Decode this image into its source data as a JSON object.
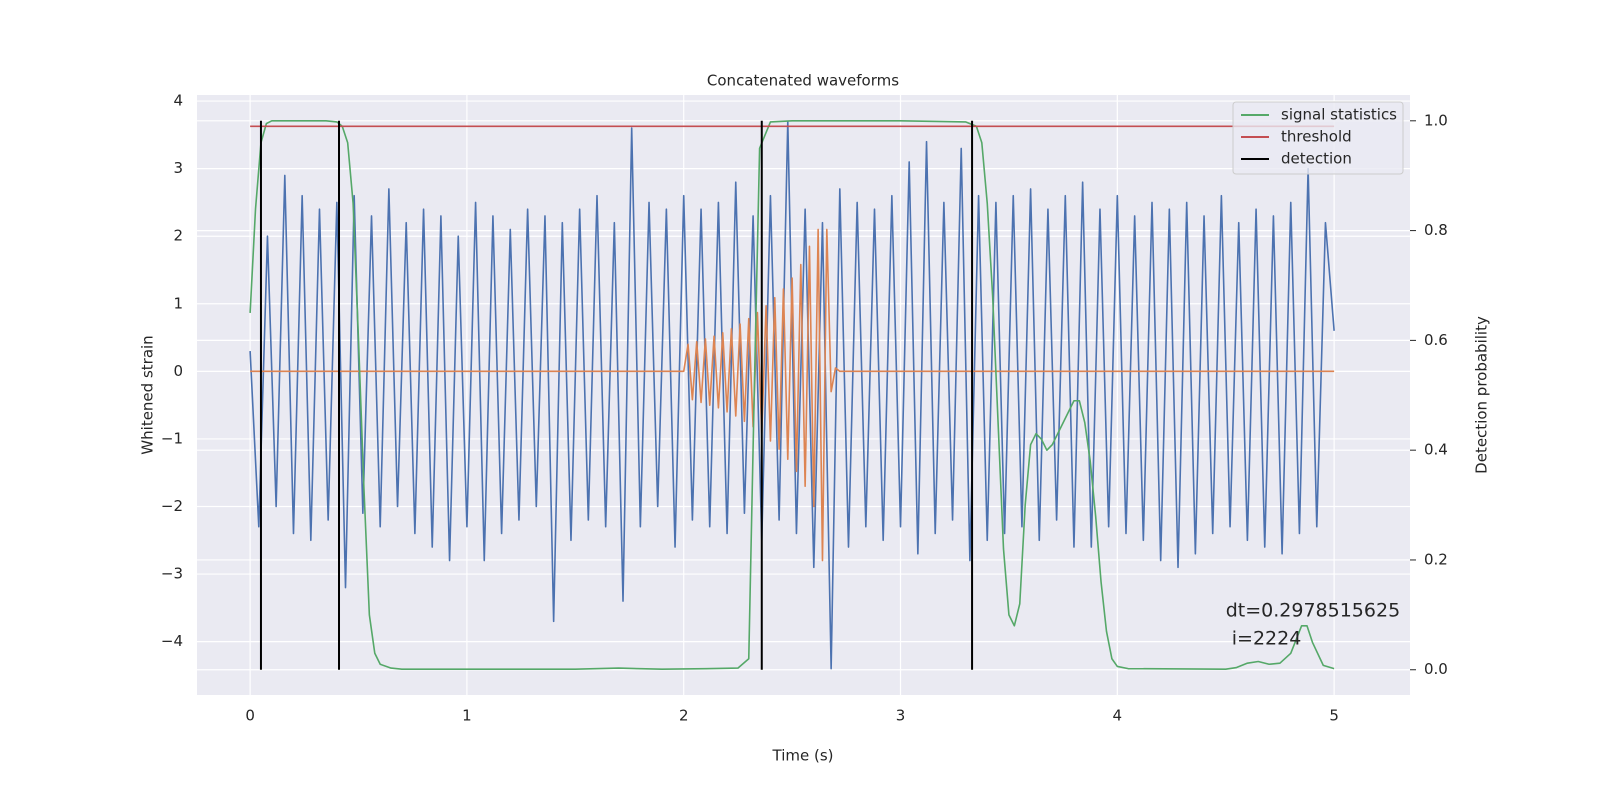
{
  "chart_data": {
    "type": "line",
    "title": "Concatenated waveforms",
    "x_label": "Time (s)",
    "y_label": "Whitened strain",
    "y2_label": "Detection probability",
    "xlim": [
      -0.245,
      5.35
    ],
    "ylim": [
      -4.79,
      4.09
    ],
    "y2lim": [
      -0.046,
      1.047
    ],
    "xticks": [
      0,
      1,
      2,
      3,
      4,
      5
    ],
    "yticks": [
      {
        "value": -4,
        "label": "−4"
      },
      {
        "value": -3,
        "label": "−3"
      },
      {
        "value": -2,
        "label": "−2"
      },
      {
        "value": -1,
        "label": "−1"
      },
      0,
      1,
      2,
      3,
      4
    ],
    "y2ticks": [
      {
        "value": 0,
        "label": "0.0"
      },
      0.2,
      0.4,
      0.6,
      0.8,
      {
        "value": 1,
        "label": "1.0"
      }
    ],
    "grid": true,
    "legend": "upper right",
    "annotation": [
      "dt=0.2978515625",
      " i=2224"
    ],
    "series": [
      {
        "kind": "line",
        "axis": "y",
        "color": "#4c72b0",
        "x": [
          0,
          0.04,
          0.08,
          0.12,
          0.16,
          0.2,
          0.24,
          0.28,
          0.32,
          0.36,
          0.4,
          0.44,
          0.48,
          0.52,
          0.56,
          0.6,
          0.64,
          0.68,
          0.72,
          0.76,
          0.8,
          0.84,
          0.88,
          0.92,
          0.96,
          1,
          1.04,
          1.08,
          1.12,
          1.16,
          1.2,
          1.24,
          1.28,
          1.32,
          1.36,
          1.4,
          1.44,
          1.48,
          1.52,
          1.56,
          1.6,
          1.64,
          1.68,
          1.72,
          1.76,
          1.8,
          1.84,
          1.88,
          1.92,
          1.96,
          2,
          2.04,
          2.08,
          2.12,
          2.16,
          2.2,
          2.24,
          2.28,
          2.32,
          2.36,
          2.4,
          2.44,
          2.48,
          2.52,
          2.56,
          2.6,
          2.64,
          2.68,
          2.72,
          2.76,
          2.8,
          2.84,
          2.88,
          2.92,
          2.96,
          3,
          3.04,
          3.08,
          3.12,
          3.16,
          3.2,
          3.24,
          3.28,
          3.32,
          3.36,
          3.4,
          3.44,
          3.48,
          3.52,
          3.56,
          3.6,
          3.64,
          3.68,
          3.72,
          3.76,
          3.8,
          3.84,
          3.88,
          3.92,
          3.96,
          4,
          4.04,
          4.08,
          4.12,
          4.16,
          4.2,
          4.24,
          4.28,
          4.32,
          4.36,
          4.4,
          4.44,
          4.48,
          4.52,
          4.56,
          4.6,
          4.64,
          4.68,
          4.72,
          4.76,
          4.8,
          4.84,
          4.88,
          4.92,
          4.96,
          5
        ],
        "values": [
          0.3,
          -2.3,
          2.0,
          -2.0,
          2.9,
          -2.4,
          2.6,
          -2.5,
          2.4,
          -2.2,
          2.5,
          -3.2,
          2.6,
          -2.1,
          2.3,
          -2.3,
          2.7,
          -2.0,
          2.2,
          -2.4,
          2.4,
          -2.6,
          2.3,
          -2.8,
          2.0,
          -2.3,
          2.5,
          -2.8,
          2.3,
          -2.4,
          2.1,
          -2.2,
          2.4,
          -2.0,
          2.3,
          -3.7,
          2.2,
          -2.5,
          2.4,
          -2.2,
          2.6,
          -2.3,
          2.2,
          -3.4,
          3.6,
          -2.3,
          2.5,
          -2.0,
          2.4,
          -2.6,
          2.6,
          -2.2,
          2.4,
          -2.3,
          2.5,
          -2.4,
          2.8,
          -2.1,
          2.3,
          -2.5,
          2.6,
          -2.2,
          3.7,
          -2.4,
          2.4,
          -2.9,
          2.2,
          -4.4,
          2.7,
          -2.6,
          2.5,
          -2.3,
          2.4,
          -2.5,
          2.6,
          -2.3,
          3.1,
          -2.7,
          3.4,
          -2.4,
          2.5,
          -2.2,
          3.3,
          -2.8,
          2.6,
          -2.5,
          2.5,
          -2.4,
          2.6,
          -2.3,
          2.7,
          -2.5,
          2.4,
          -2.2,
          2.6,
          -2.6,
          2.8,
          -2.6,
          2.4,
          -2.3,
          2.6,
          -2.4,
          2.3,
          -2.5,
          2.5,
          -2.8,
          2.4,
          -2.9,
          2.5,
          -2.7,
          2.3,
          -2.4,
          2.6,
          -2.3,
          2.2,
          -2.5,
          2.4,
          -2.6,
          2.3,
          -2.7,
          2.5,
          -2.4,
          3.0,
          -2.3,
          2.2,
          0.6
        ]
      },
      {
        "kind": "line",
        "axis": "y",
        "color": "#dd8452",
        "x": [
          0,
          2.0,
          2.02,
          2.04,
          2.06,
          2.08,
          2.1,
          2.12,
          2.14,
          2.16,
          2.18,
          2.2,
          2.22,
          2.24,
          2.26,
          2.28,
          2.3,
          2.32,
          2.34,
          2.36,
          2.38,
          2.4,
          2.42,
          2.44,
          2.46,
          2.48,
          2.5,
          2.52,
          2.54,
          2.56,
          2.58,
          2.6,
          2.62,
          2.64,
          2.66,
          2.68,
          2.7,
          2.72,
          5
        ],
        "values": [
          0,
          0,
          0.4,
          -0.42,
          0.44,
          -0.46,
          0.48,
          -0.5,
          0.52,
          -0.54,
          0.57,
          -0.6,
          0.63,
          -0.66,
          0.7,
          -0.74,
          0.78,
          -0.82,
          0.87,
          -0.92,
          0.97,
          -1.03,
          1.09,
          -1.15,
          1.22,
          -1.3,
          1.38,
          -1.48,
          1.58,
          -1.7,
          1.85,
          -2.0,
          2.1,
          -2.8,
          2.1,
          -0.3,
          0.05,
          0,
          0
        ]
      },
      {
        "kind": "line",
        "axis": "y2",
        "name": "signal statistics",
        "color": "#55a868",
        "x": [
          0,
          0.025,
          0.05,
          0.075,
          0.1,
          0.15,
          0.2,
          0.25,
          0.3,
          0.35,
          0.4,
          0.425,
          0.45,
          0.475,
          0.5,
          0.525,
          0.55,
          0.575,
          0.6,
          0.65,
          0.7,
          1.0,
          1.5,
          1.7,
          1.9,
          2.1,
          2.25,
          2.3,
          2.325,
          2.35,
          2.4,
          2.5,
          3.0,
          3.3,
          3.35,
          3.375,
          3.4,
          3.425,
          3.45,
          3.475,
          3.5,
          3.525,
          3.55,
          3.575,
          3.6,
          3.625,
          3.65,
          3.675,
          3.7,
          3.75,
          3.8,
          3.825,
          3.85,
          3.875,
          3.9,
          3.925,
          3.95,
          3.975,
          4.0,
          4.05,
          4.5,
          4.55,
          4.6,
          4.65,
          4.7,
          4.75,
          4.8,
          4.85,
          4.875,
          4.9,
          4.95,
          5.0
        ],
        "values": [
          0.65,
          0.84,
          0.96,
          0.995,
          1.0,
          1.0,
          1.0,
          1.0,
          1.0,
          1.0,
          0.998,
          0.99,
          0.96,
          0.85,
          0.6,
          0.33,
          0.1,
          0.03,
          0.01,
          0.003,
          0.001,
          0.001,
          0.001,
          0.003,
          0.001,
          0.002,
          0.003,
          0.02,
          0.5,
          0.95,
          0.998,
          1.0,
          1.0,
          0.998,
          0.99,
          0.96,
          0.85,
          0.68,
          0.45,
          0.22,
          0.1,
          0.08,
          0.12,
          0.3,
          0.41,
          0.43,
          0.42,
          0.4,
          0.41,
          0.45,
          0.49,
          0.49,
          0.45,
          0.38,
          0.28,
          0.16,
          0.07,
          0.02,
          0.006,
          0.002,
          0.001,
          0.004,
          0.012,
          0.015,
          0.01,
          0.012,
          0.03,
          0.08,
          0.08,
          0.05,
          0.008,
          0.002
        ]
      },
      {
        "kind": "line",
        "axis": "y2",
        "name": "threshold",
        "color": "#c44e52",
        "x": [
          0,
          5
        ],
        "values": [
          0.99,
          0.99
        ]
      },
      {
        "kind": "vlines",
        "axis": "y2",
        "name": "detection",
        "color": "#000000",
        "x": [
          0.05,
          0.41,
          2.36,
          3.33
        ],
        "ymin": 0,
        "ymax": 1
      }
    ]
  }
}
